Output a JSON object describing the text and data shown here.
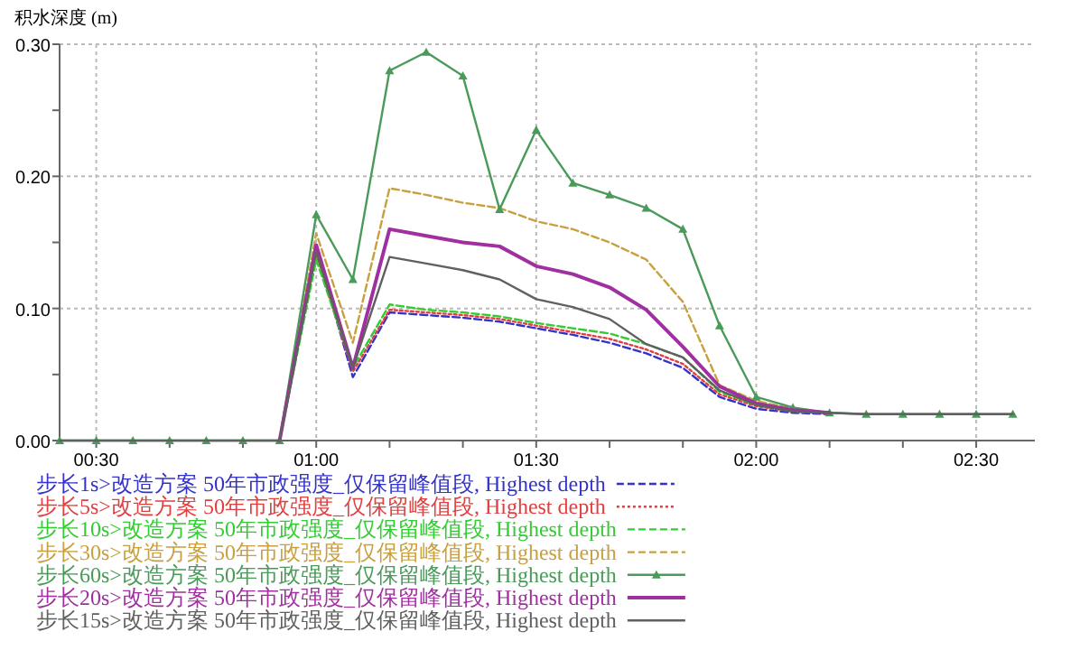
{
  "chart_data": {
    "type": "line",
    "ylabel": "积水深度 (m)",
    "x": [
      0.4167,
      0.5,
      0.5833,
      0.6667,
      0.75,
      0.8333,
      0.9167,
      1,
      1.0833,
      1.1667,
      1.25,
      1.3333,
      1.4167,
      1.5,
      1.5833,
      1.6667,
      1.75,
      1.8333,
      1.9167,
      2,
      2.0833,
      2.1667,
      2.25,
      2.3333,
      2.4167,
      2.5,
      2.5833
    ],
    "xlim": [
      0.4167,
      2.6333
    ],
    "xticks": [
      {
        "value": 0.5,
        "label": "00:30"
      },
      {
        "value": 0.6667,
        "label": null
      },
      {
        "value": 0.8333,
        "label": null
      },
      {
        "value": 1,
        "label": "01:00"
      },
      {
        "value": 1.1667,
        "label": null
      },
      {
        "value": 1.3333,
        "label": null
      },
      {
        "value": 1.5,
        "label": "01:30"
      },
      {
        "value": 1.6667,
        "label": null
      },
      {
        "value": 1.8333,
        "label": null
      },
      {
        "value": 2,
        "label": "02:00"
      },
      {
        "value": 2.1667,
        "label": null
      },
      {
        "value": 2.3333,
        "label": null
      },
      {
        "value": 2.5,
        "label": "02:30"
      }
    ],
    "ylim": [
      0,
      0.3
    ],
    "yticks": [
      {
        "value": 0,
        "label": "0.00"
      },
      {
        "value": 0.05,
        "label": null
      },
      {
        "value": 0.1,
        "label": "0.10"
      },
      {
        "value": 0.15,
        "label": null
      },
      {
        "value": 0.2,
        "label": "0.20"
      },
      {
        "value": 0.25,
        "label": null
      },
      {
        "value": 0.3,
        "label": "0.30"
      }
    ],
    "grid": true,
    "legend": "bottom",
    "series": [
      {
        "name": "步长1s>改造方案 50年市政强度_仅保留峰值段, Highest depth",
        "color": "#3333cc",
        "line_style": "dashed",
        "values": [
          null,
          null,
          null,
          null,
          null,
          null,
          0,
          0.145,
          0.048,
          0.097,
          0.095,
          0.093,
          0.09,
          0.085,
          0.08,
          0.074,
          0.066,
          0.055,
          0.033,
          0.024,
          0.021,
          0.02,
          null,
          null,
          null,
          null,
          null
        ]
      },
      {
        "name": "步长5s>改造方案 50年市政强度_仅保留峰值段, Highest depth",
        "color": "#e04040",
        "line_style": "dotted",
        "values": [
          null,
          null,
          null,
          null,
          null,
          null,
          0,
          0.141,
          0.052,
          0.099,
          0.097,
          0.095,
          0.092,
          0.087,
          0.082,
          0.077,
          0.069,
          0.058,
          0.035,
          0.026,
          0.022,
          0.021,
          null,
          null,
          null,
          null,
          null
        ]
      },
      {
        "name": "步长10s>改造方案 50年市政强度_仅保留峰值段, Highest depth",
        "color": "#33cc33",
        "line_style": "dashed",
        "values": [
          null,
          null,
          null,
          null,
          null,
          null,
          0,
          0.137,
          0.055,
          0.103,
          0.099,
          0.097,
          0.094,
          0.089,
          0.085,
          0.081,
          0.073,
          0.063,
          0.037,
          0.027,
          0.022,
          0.021,
          null,
          null,
          null,
          null,
          null
        ]
      },
      {
        "name": "步长30s>改造方案 50年市政强度_仅保留峰值段, Highest depth",
        "color": "#c8a040",
        "line_style": "dashed",
        "values": [
          null,
          null,
          null,
          null,
          null,
          null,
          0,
          0.157,
          0.074,
          0.191,
          0.186,
          0.18,
          0.176,
          0.166,
          0.16,
          0.15,
          0.137,
          0.105,
          0.042,
          0.03,
          0.024,
          0.021,
          null,
          null,
          null,
          null,
          null
        ]
      },
      {
        "name": "步长60s>改造方案 50年市政强度_仅保留峰值段, Highest depth",
        "color": "#4a9a5a",
        "line_style": "solid",
        "marker": "triangle",
        "values": [
          0,
          0,
          0,
          0,
          0,
          0,
          0,
          0.171,
          0.122,
          0.28,
          0.294,
          0.276,
          0.175,
          0.235,
          0.195,
          0.186,
          0.176,
          0.16,
          0.087,
          0.033,
          0.025,
          0.021,
          0.02,
          0.02,
          0.02,
          0.02,
          0.02
        ]
      },
      {
        "name": "步长20s>改造方案 50年市政强度_仅保留峰值段, Highest depth",
        "color": "#a030a0",
        "line_style": "solid",
        "values": [
          null,
          null,
          null,
          null,
          null,
          null,
          0,
          0.148,
          0.055,
          0.16,
          0.155,
          0.15,
          0.147,
          0.132,
          0.126,
          0.116,
          0.099,
          0.071,
          0.041,
          0.028,
          0.023,
          0.021,
          null,
          null,
          null,
          null,
          null
        ]
      },
      {
        "name": "步长15s>改造方案 50年市政强度_仅保留峰值段, Highest depth",
        "color": "#606060",
        "line_style": "solid",
        "values": [
          0,
          0,
          0,
          0,
          0,
          0,
          0,
          0.143,
          0.055,
          0.139,
          0.134,
          0.129,
          0.122,
          0.107,
          0.101,
          0.092,
          0.073,
          0.063,
          0.038,
          0.027,
          0.022,
          0.021,
          0.02,
          0.02,
          0.02,
          0.02,
          0.02
        ]
      }
    ]
  }
}
